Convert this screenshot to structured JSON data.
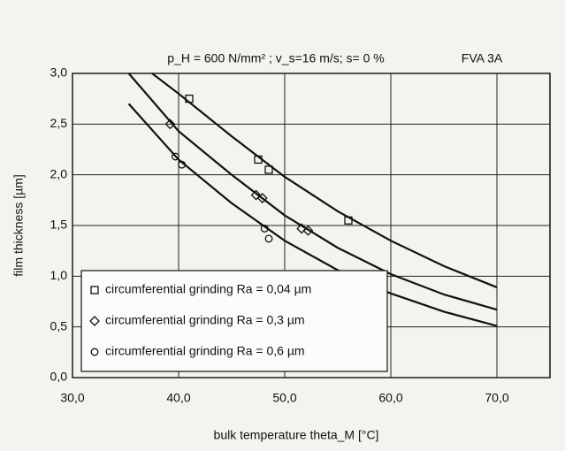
{
  "chart_data": {
    "type": "line",
    "title": "p_H = 600 N/mm² ; v_s=16 m/s; s= 0 %",
    "annotation": "FVA 3A",
    "x_label": "bulk temperature theta_M [°C]",
    "y_label": "film thickness [µm]",
    "xlim": [
      30,
      75
    ],
    "ylim": [
      0,
      3
    ],
    "xticks": [
      {
        "value": 30,
        "label": "30,0"
      },
      {
        "value": 40,
        "label": "40,0"
      },
      {
        "value": 50,
        "label": "50,0"
      },
      {
        "value": 60,
        "label": "60,0"
      },
      {
        "value": 70,
        "label": "70,0"
      }
    ],
    "yticks": [
      {
        "value": 0,
        "label": "0,0"
      },
      {
        "value": 0.5,
        "label": "0,5"
      },
      {
        "value": 1,
        "label": "1,0"
      },
      {
        "value": 1.5,
        "label": "1,5"
      },
      {
        "value": 2,
        "label": "2,0"
      },
      {
        "value": 2.5,
        "label": "2,5"
      },
      {
        "value": 3,
        "label": "3,0"
      }
    ],
    "grid": true,
    "legend": "lower left",
    "series": [
      {
        "name": "circumferential grinding Ra = 0,04 µm",
        "marker": "square",
        "color": "#111111",
        "curve": {
          "x": [
            37.5,
            40,
            45,
            50,
            55,
            60,
            65,
            70
          ],
          "y": [
            3.0,
            2.8,
            2.38,
            1.98,
            1.64,
            1.35,
            1.1,
            0.89
          ]
        },
        "points": {
          "x": [
            41,
            47.5,
            48.5,
            56
          ],
          "y": [
            2.75,
            2.15,
            2.05,
            1.55
          ]
        }
      },
      {
        "name": "circumferential grinding Ra = 0,3 µm",
        "marker": "diamond",
        "color": "#111111",
        "curve": {
          "x": [
            35.3,
            40,
            45,
            50,
            55,
            60,
            65,
            70
          ],
          "y": [
            3.0,
            2.43,
            2.0,
            1.6,
            1.28,
            1.02,
            0.82,
            0.67
          ]
        },
        "points": {
          "x": [
            39.2,
            47.3,
            47.9,
            51.6,
            52.2
          ],
          "y": [
            2.5,
            1.8,
            1.77,
            1.47,
            1.45
          ]
        }
      },
      {
        "name": "circumferential grinding Ra = 0,6 µm",
        "marker": "circle",
        "color": "#111111",
        "curve": {
          "x": [
            35.3,
            40,
            45,
            50,
            55,
            60,
            65,
            70
          ],
          "y": [
            2.7,
            2.15,
            1.72,
            1.35,
            1.06,
            0.83,
            0.65,
            0.51
          ]
        },
        "points": {
          "x": [
            39.7,
            40.3,
            48.1,
            48.5
          ],
          "y": [
            2.18,
            2.1,
            1.47,
            1.37
          ]
        }
      }
    ]
  }
}
